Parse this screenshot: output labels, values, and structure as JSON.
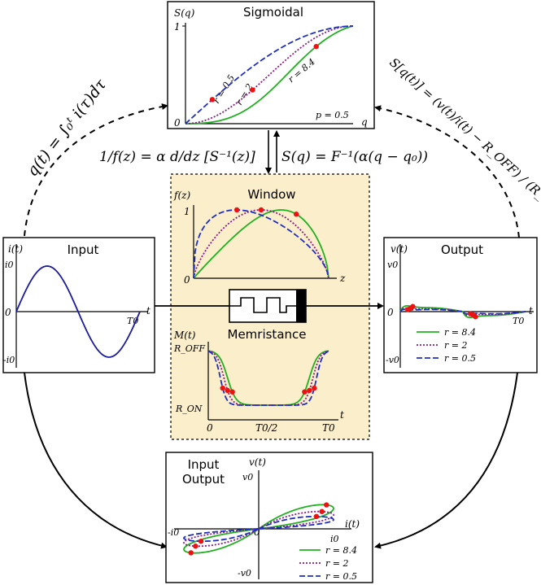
{
  "colors": {
    "green": "#22b022",
    "purple": "#8b1a8b",
    "blue": "#1f2fbf",
    "input_blue": "#1a1aa0",
    "dots": "#ee1111",
    "panel_bg": "#fbeecb"
  },
  "sigmoidal": {
    "title": "Sigmoidal",
    "ylabel": "S(q)",
    "xlabel": "q",
    "tick_1": "1",
    "tick_0": "0",
    "p_label": "p = 0.5",
    "r_labels": [
      "r = 0.5",
      "r = 2",
      "r = 8.4"
    ]
  },
  "window": {
    "title": "Window",
    "ylabel": "f(z)",
    "xlabel": "z",
    "tick_1": "1",
    "tick_0": "0"
  },
  "input": {
    "title": "Input",
    "ylabel": "i(t)",
    "xlabel": "t",
    "tick_top": "i0",
    "tick_zero": "0",
    "tick_bottom": "-i0",
    "tick_T": "T0"
  },
  "output": {
    "title": "Output",
    "ylabel": "v(t)",
    "xlabel": "t",
    "tick_top": "v0",
    "tick_zero": "0",
    "tick_bottom": "-v0",
    "tick_T": "T0",
    "legend": [
      "r = 8.4",
      "r = 2",
      "r = 0.5"
    ]
  },
  "memristance": {
    "title": "Memristance",
    "ylabel": "M(t)",
    "xlabel": "t",
    "tick_off": "R_OFF",
    "tick_on": "R_ON",
    "xticks": [
      "0",
      "T0/2",
      "T0"
    ]
  },
  "io": {
    "title_line1": "Input",
    "title_line2": "Output",
    "ylabel": "v(t)",
    "xlabel": "i(t)",
    "tick_v0": "v0",
    "tick_mv0": "-v0",
    "tick_i0": "i0",
    "tick_mi0": "-i0",
    "tick_zero": "0",
    "legend": [
      "r = 8.4",
      "r = 2",
      "r = 0.5"
    ]
  },
  "equations": {
    "q_integral": "q(t) = ∫₀ᵗ i(τ)dτ",
    "inverse_f": "1/f(z) = α d/dz [S⁻¹(z)]",
    "s_of_q": "S(q) = F⁻¹(α(q − q₀))",
    "s_bracket": "S[q(t)] = (v(t)/i(t) − R_OFF) / (R_ON − R_OFF)"
  }
}
